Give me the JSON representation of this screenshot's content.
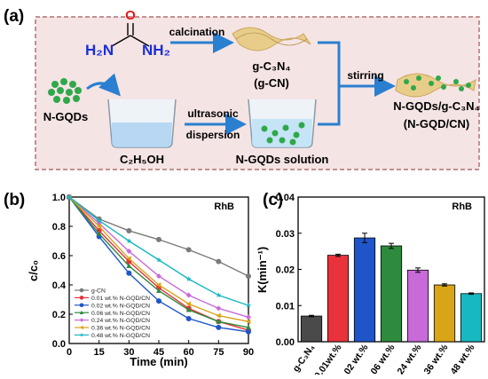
{
  "panels": {
    "a": "(a)",
    "b": "(b)",
    "c": "(c)"
  },
  "scheme": {
    "urea_top": "O",
    "urea_n1": "H₂N",
    "urea_n2": "NH₂",
    "calcination": "calcination",
    "gcn_formula": "g-C₃N₄",
    "gcn_abbr": "(g-CN)",
    "ngqds": "N-GQDs",
    "ethanol": "C₂H₅OH",
    "ultrasonic": "ultrasonic",
    "dispersion": "dispersion",
    "ngqds_solution": "N-GQDs solution",
    "stirring": "stirring",
    "product": "N-GQDs/g-C₃N₄",
    "product_abbr": "(N-GQD/CN)"
  },
  "colors": {
    "scheme_bg": "#f5e4e4",
    "scheme_border": "#b07070",
    "arrow_blue": "#2a7fd0",
    "urea_blue": "#1a2fd6",
    "urea_red": "#e01b1b",
    "dot_green": "#2fa84a"
  },
  "chart_data": [
    {
      "type": "line",
      "panel": "(b)",
      "annotation": "RhB",
      "xlabel": "Time (min)",
      "ylabel": "c/c₀",
      "xlim": [
        0,
        90
      ],
      "ylim": [
        0.0,
        1.0
      ],
      "xticks": [
        "0",
        "15",
        "30",
        "45",
        "60",
        "75",
        "90"
      ],
      "yticks": [
        "0.0",
        "0.2",
        "0.4",
        "0.6",
        "0.8",
        "1.0"
      ],
      "x": [
        0,
        15,
        30,
        45,
        60,
        75,
        90
      ],
      "legend_position": "bottom-left",
      "series": [
        {
          "name": "g-CN",
          "color": "#7a7a7a",
          "marker": "circle",
          "values": [
            1.0,
            0.85,
            0.77,
            0.71,
            0.64,
            0.56,
            0.46
          ]
        },
        {
          "name": "0.01 wt.% N-GQD/CN",
          "color": "#e8323c",
          "marker": "circle",
          "values": [
            1.0,
            0.77,
            0.56,
            0.38,
            0.24,
            0.15,
            0.09
          ]
        },
        {
          "name": "0.02 wt.% N-GQD/CN",
          "color": "#1f55c8",
          "marker": "circle",
          "values": [
            1.0,
            0.73,
            0.48,
            0.29,
            0.17,
            0.11,
            0.08
          ]
        },
        {
          "name": "0.06 wt.% N-GQD/CN",
          "color": "#2e8b3e",
          "marker": "triangle",
          "values": [
            1.0,
            0.75,
            0.53,
            0.36,
            0.23,
            0.15,
            0.11
          ]
        },
        {
          "name": "0.24 wt.% N-GQD/CN",
          "color": "#c86ad8",
          "marker": "diamond",
          "values": [
            1.0,
            0.82,
            0.63,
            0.46,
            0.33,
            0.24,
            0.18
          ]
        },
        {
          "name": "0.36 wt.% N-GQD/CN",
          "color": "#d8a418",
          "marker": "triangle-left",
          "values": [
            1.0,
            0.8,
            0.58,
            0.4,
            0.27,
            0.19,
            0.15
          ]
        },
        {
          "name": "0.48 wt.% N-GQD/CN",
          "color": "#18b8c0",
          "marker": "star",
          "values": [
            1.0,
            0.84,
            0.7,
            0.57,
            0.44,
            0.33,
            0.26
          ]
        }
      ]
    },
    {
      "type": "bar",
      "panel": "(c)",
      "annotation": "RhB",
      "ylabel": "K(min⁻¹)",
      "ylim": [
        0.0,
        0.04
      ],
      "yticks": [
        "0.00",
        "0.01",
        "0.02",
        "0.03",
        "0.04"
      ],
      "categories": [
        "g-C₃N₄",
        "0.01wt.%",
        "0.02 wt.%",
        "0.06 wt.%",
        "0.24 wt.%",
        "0.36 wt.%",
        "0.48 wt.%"
      ],
      "values": [
        0.0071,
        0.0239,
        0.0287,
        0.0265,
        0.0198,
        0.0157,
        0.0133
      ],
      "errors": [
        0.0002,
        0.0003,
        0.0013,
        0.0007,
        0.0006,
        0.0003,
        0.0002
      ],
      "colors": [
        "#4a4a4a",
        "#e8323c",
        "#1f55c8",
        "#2e8b3e",
        "#c86ad8",
        "#d8a418",
        "#18b8c0"
      ]
    }
  ]
}
